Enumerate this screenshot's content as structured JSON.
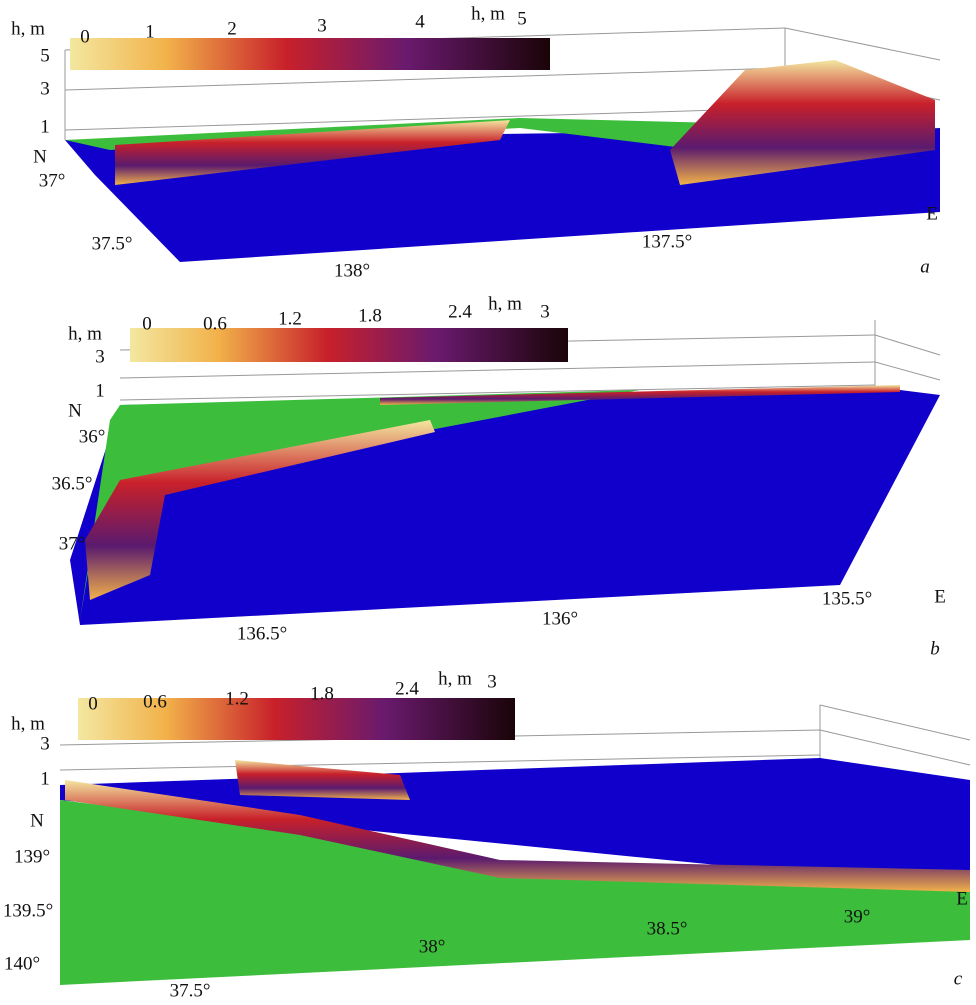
{
  "panels": [
    {
      "label": "a",
      "colorbar": {
        "title": "h, m",
        "ticks": [
          "0",
          "1",
          "2",
          "3",
          "4",
          "5"
        ]
      },
      "z_axis": {
        "title": "h, m",
        "ticks": [
          "5",
          "3",
          "1"
        ]
      },
      "north": "N",
      "lat_ticks": [
        "37°",
        "37.5°"
      ],
      "lon_ticks": [
        "138°",
        "137.5°"
      ],
      "east": "E"
    },
    {
      "label": "b",
      "colorbar": {
        "title": "h, m",
        "ticks": [
          "0",
          "0.6",
          "1.2",
          "1.8",
          "2.4",
          "3"
        ]
      },
      "z_axis": {
        "title": "h, m",
        "ticks": [
          "3",
          "1"
        ]
      },
      "north": "N",
      "lat_ticks": [
        "36°",
        "36.5°",
        "37°"
      ],
      "lon_ticks": [
        "136.5°",
        "136°",
        "135.5°"
      ],
      "east": "E"
    },
    {
      "label": "c",
      "colorbar": {
        "title": "h, m",
        "ticks": [
          "0",
          "0.6",
          "1.2",
          "1.8",
          "2.4",
          "3"
        ]
      },
      "z_axis": {
        "title": "h, m",
        "ticks": [
          "3",
          "1"
        ]
      },
      "north": "N",
      "lat_ticks": [
        "139°",
        "139.5°",
        "140°"
      ],
      "lon_ticks": [
        "37.5°",
        "38°",
        "38.5°",
        "39°"
      ],
      "east": "E"
    }
  ]
}
